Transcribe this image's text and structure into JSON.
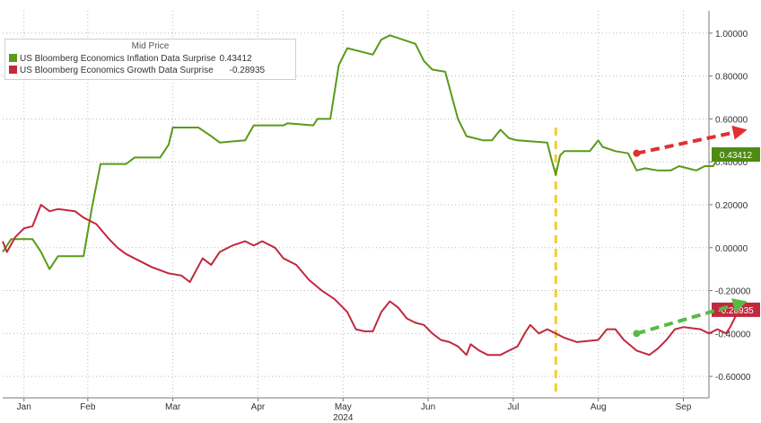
{
  "chart_data": {
    "type": "line",
    "title": "",
    "xlabel": "2024",
    "ylabel": "",
    "legend_title": "Mid Price",
    "legend_position": "top-left",
    "grid": true,
    "ylim": [
      -0.65,
      1.15
    ],
    "xlim": [
      0,
      8.3
    ],
    "y_ticks": [
      1.0,
      0.8,
      0.6,
      0.4,
      0.2,
      0.0,
      -0.2,
      -0.4,
      -0.6
    ],
    "y_tick_labels": [
      "1.00000",
      "0.80000",
      "0.60000",
      "0.40000",
      "0.20000",
      "0.00000",
      "-0.20000",
      "-0.40000",
      "-0.60000"
    ],
    "x_ticks": [
      {
        "label": "Jan",
        "x": 0.25
      },
      {
        "label": "Feb",
        "x": 1.0
      },
      {
        "label": "Mar",
        "x": 2.0
      },
      {
        "label": "Apr",
        "x": 3.0
      },
      {
        "label": "May",
        "x": 4.0
      },
      {
        "label": "Jun",
        "x": 5.0
      },
      {
        "label": "Jul",
        "x": 6.0
      },
      {
        "label": "Aug",
        "x": 7.0
      },
      {
        "label": "Sep",
        "x": 8.0
      }
    ],
    "vertical_marker_x": 6.5,
    "series": [
      {
        "name": "US Bloomberg Economics Inflation Data Surprise",
        "last_value": "0.43412",
        "legend_value": "0.43412",
        "color": "#5a9a1a",
        "label_bg": "#4e8a14",
        "points": [
          [
            0,
            -0.02
          ],
          [
            0.1,
            0.04
          ],
          [
            0.35,
            0.04
          ],
          [
            0.45,
            -0.02
          ],
          [
            0.55,
            -0.1
          ],
          [
            0.65,
            -0.04
          ],
          [
            0.95,
            -0.04
          ],
          [
            1.05,
            0.19
          ],
          [
            1.15,
            0.39
          ],
          [
            1.45,
            0.39
          ],
          [
            1.55,
            0.42
          ],
          [
            1.85,
            0.42
          ],
          [
            1.95,
            0.48
          ],
          [
            2.0,
            0.56
          ],
          [
            2.3,
            0.56
          ],
          [
            2.45,
            0.52
          ],
          [
            2.55,
            0.49
          ],
          [
            2.85,
            0.5
          ],
          [
            2.95,
            0.57
          ],
          [
            3.3,
            0.57
          ],
          [
            3.35,
            0.58
          ],
          [
            3.65,
            0.57
          ],
          [
            3.7,
            0.6
          ],
          [
            3.85,
            0.6
          ],
          [
            3.95,
            0.85
          ],
          [
            4.05,
            0.93
          ],
          [
            4.35,
            0.9
          ],
          [
            4.45,
            0.97
          ],
          [
            4.55,
            0.99
          ],
          [
            4.85,
            0.95
          ],
          [
            4.95,
            0.87
          ],
          [
            5.05,
            0.83
          ],
          [
            5.2,
            0.82
          ],
          [
            5.35,
            0.6
          ],
          [
            5.45,
            0.52
          ],
          [
            5.65,
            0.5
          ],
          [
            5.75,
            0.5
          ],
          [
            5.85,
            0.55
          ],
          [
            5.95,
            0.51
          ],
          [
            6.05,
            0.5
          ],
          [
            6.4,
            0.49
          ],
          [
            6.45,
            0.41
          ],
          [
            6.5,
            0.34
          ],
          [
            6.55,
            0.43
          ],
          [
            6.6,
            0.45
          ],
          [
            6.9,
            0.45
          ],
          [
            7.0,
            0.5
          ],
          [
            7.05,
            0.47
          ],
          [
            7.2,
            0.45
          ],
          [
            7.35,
            0.44
          ],
          [
            7.45,
            0.36
          ],
          [
            7.55,
            0.37
          ],
          [
            7.7,
            0.36
          ],
          [
            7.85,
            0.36
          ],
          [
            7.95,
            0.38
          ],
          [
            8.05,
            0.37
          ],
          [
            8.15,
            0.36
          ],
          [
            8.25,
            0.38
          ],
          [
            8.35,
            0.38
          ],
          [
            8.45,
            0.45
          ],
          [
            8.55,
            0.43
          ],
          [
            8.65,
            0.43
          ]
        ]
      },
      {
        "name": "US Bloomberg Economics Growth Data Surprise",
        "last_value": "-0.28935",
        "legend_value": "-0.28935",
        "color": "#c1293d",
        "label_bg": "#c1293d",
        "points": [
          [
            0,
            0.03
          ],
          [
            0.05,
            -0.02
          ],
          [
            0.15,
            0.05
          ],
          [
            0.25,
            0.09
          ],
          [
            0.35,
            0.1
          ],
          [
            0.45,
            0.2
          ],
          [
            0.55,
            0.17
          ],
          [
            0.65,
            0.18
          ],
          [
            0.85,
            0.17
          ],
          [
            0.95,
            0.14
          ],
          [
            1.1,
            0.11
          ],
          [
            1.25,
            0.04
          ],
          [
            1.35,
            0.0
          ],
          [
            1.45,
            -0.03
          ],
          [
            1.55,
            -0.05
          ],
          [
            1.75,
            -0.09
          ],
          [
            1.95,
            -0.12
          ],
          [
            2.1,
            -0.13
          ],
          [
            2.2,
            -0.16
          ],
          [
            2.35,
            -0.05
          ],
          [
            2.45,
            -0.08
          ],
          [
            2.55,
            -0.02
          ],
          [
            2.7,
            0.01
          ],
          [
            2.85,
            0.03
          ],
          [
            2.95,
            0.01
          ],
          [
            3.05,
            0.03
          ],
          [
            3.2,
            0.0
          ],
          [
            3.3,
            -0.05
          ],
          [
            3.45,
            -0.08
          ],
          [
            3.6,
            -0.15
          ],
          [
            3.75,
            -0.2
          ],
          [
            3.9,
            -0.24
          ],
          [
            4.05,
            -0.3
          ],
          [
            4.15,
            -0.38
          ],
          [
            4.25,
            -0.39
          ],
          [
            4.35,
            -0.39
          ],
          [
            4.45,
            -0.3
          ],
          [
            4.55,
            -0.25
          ],
          [
            4.65,
            -0.28
          ],
          [
            4.75,
            -0.33
          ],
          [
            4.85,
            -0.35
          ],
          [
            4.95,
            -0.36
          ],
          [
            5.05,
            -0.4
          ],
          [
            5.15,
            -0.43
          ],
          [
            5.25,
            -0.44
          ],
          [
            5.35,
            -0.46
          ],
          [
            5.45,
            -0.5
          ],
          [
            5.5,
            -0.45
          ],
          [
            5.6,
            -0.48
          ],
          [
            5.7,
            -0.5
          ],
          [
            5.85,
            -0.5
          ],
          [
            5.95,
            -0.48
          ],
          [
            6.05,
            -0.46
          ],
          [
            6.15,
            -0.39
          ],
          [
            6.2,
            -0.36
          ],
          [
            6.3,
            -0.4
          ],
          [
            6.4,
            -0.38
          ],
          [
            6.5,
            -0.4
          ],
          [
            6.6,
            -0.42
          ],
          [
            6.75,
            -0.44
          ],
          [
            7.0,
            -0.43
          ],
          [
            7.1,
            -0.38
          ],
          [
            7.2,
            -0.38
          ],
          [
            7.3,
            -0.43
          ],
          [
            7.45,
            -0.48
          ],
          [
            7.6,
            -0.5
          ],
          [
            7.7,
            -0.47
          ],
          [
            7.8,
            -0.43
          ],
          [
            7.9,
            -0.38
          ],
          [
            8.0,
            -0.37
          ],
          [
            8.2,
            -0.38
          ],
          [
            8.3,
            -0.4
          ],
          [
            8.4,
            -0.38
          ],
          [
            8.5,
            -0.4
          ],
          [
            8.55,
            -0.37
          ],
          [
            8.65,
            -0.29
          ]
        ]
      }
    ],
    "annotations": [
      {
        "type": "arrow",
        "color": "#e03030",
        "from": [
          7.45,
          0.44
        ],
        "to": [
          8.75,
          0.55
        ]
      },
      {
        "type": "arrow",
        "color": "#55bb44",
        "from": [
          7.45,
          -0.4
        ],
        "to": [
          8.75,
          -0.25
        ]
      }
    ]
  }
}
